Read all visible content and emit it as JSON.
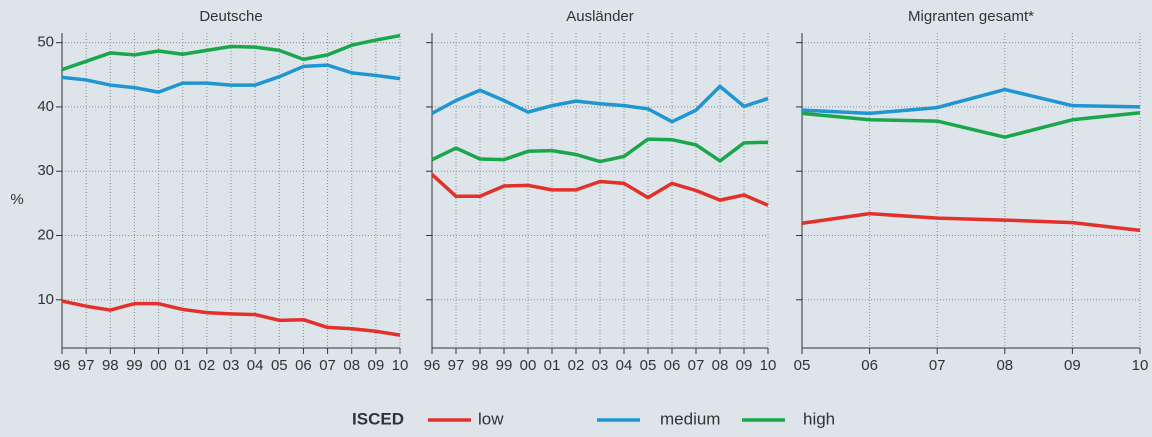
{
  "legend_title": "ISCED",
  "chart_data": [
    {
      "type": "line",
      "title": "Deutsche",
      "ylabel": "%",
      "categories": [
        "96",
        "97",
        "98",
        "99",
        "00",
        "01",
        "02",
        "03",
        "04",
        "05",
        "06",
        "07",
        "08",
        "09",
        "10"
      ],
      "ylim": [
        2.5,
        51.5
      ],
      "yticks": [
        10,
        20,
        30,
        40,
        50
      ],
      "grid": true,
      "series": [
        {
          "name": "low",
          "color": "#e2312a",
          "values": [
            9.8,
            9.0,
            8.4,
            9.4,
            9.4,
            8.5,
            8.0,
            7.8,
            7.7,
            6.8,
            6.9,
            5.7,
            5.5,
            5.1,
            4.5
          ]
        },
        {
          "name": "medium",
          "color": "#1f96d2",
          "values": [
            44.6,
            44.2,
            43.4,
            43.0,
            42.3,
            43.7,
            43.7,
            43.4,
            43.4,
            44.7,
            46.3,
            46.5,
            45.3,
            44.9,
            44.4
          ]
        },
        {
          "name": "high",
          "color": "#1aa64a",
          "values": [
            45.8,
            47.1,
            48.4,
            48.1,
            48.7,
            48.2,
            48.8,
            49.4,
            49.3,
            48.8,
            47.4,
            48.1,
            49.6,
            50.4,
            51.1
          ]
        }
      ]
    },
    {
      "type": "line",
      "title": "Ausländer",
      "categories": [
        "96",
        "97",
        "98",
        "99",
        "00",
        "01",
        "02",
        "03",
        "04",
        "05",
        "06",
        "07",
        "08",
        "09",
        "10"
      ],
      "ylim": [
        2.5,
        51.5
      ],
      "yticks": [
        10,
        20,
        30,
        40,
        50
      ],
      "grid": true,
      "series": [
        {
          "name": "low",
          "color": "#e2312a",
          "values": [
            29.5,
            26.1,
            26.1,
            27.7,
            27.8,
            27.1,
            27.1,
            28.4,
            28.1,
            25.9,
            28.1,
            27.0,
            25.5,
            26.3,
            24.7
          ]
        },
        {
          "name": "medium",
          "color": "#1f96d2",
          "values": [
            39.0,
            41.0,
            42.6,
            41.0,
            39.2,
            40.2,
            40.9,
            40.5,
            40.2,
            39.7,
            37.7,
            39.5,
            43.2,
            40.1,
            41.3
          ]
        },
        {
          "name": "high",
          "color": "#1aa64a",
          "values": [
            31.8,
            33.6,
            31.9,
            31.8,
            33.1,
            33.2,
            32.6,
            31.5,
            32.3,
            35.0,
            34.9,
            34.1,
            31.6,
            34.4,
            34.5
          ]
        }
      ]
    },
    {
      "type": "line",
      "title": "Migranten gesamt*",
      "categories": [
        "05",
        "06",
        "07",
        "08",
        "09",
        "10"
      ],
      "ylim": [
        2.5,
        51.5
      ],
      "yticks": [
        10,
        20,
        30,
        40,
        50
      ],
      "grid": true,
      "series": [
        {
          "name": "low",
          "color": "#e2312a",
          "values": [
            21.9,
            23.4,
            22.7,
            22.4,
            22.0,
            20.8
          ]
        },
        {
          "name": "medium",
          "color": "#1f96d2",
          "values": [
            39.5,
            39.0,
            39.9,
            42.7,
            40.2,
            40.0
          ]
        },
        {
          "name": "high",
          "color": "#1aa64a",
          "values": [
            39.0,
            38.0,
            37.8,
            35.3,
            38.0,
            39.1
          ]
        }
      ]
    }
  ]
}
